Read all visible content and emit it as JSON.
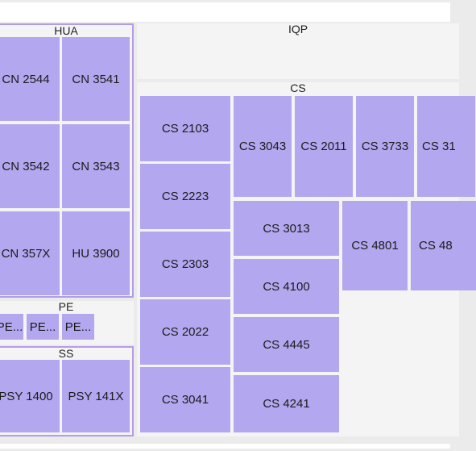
{
  "colors": {
    "leaf": "#b3a7ef",
    "group_bg": "#f4f4f4",
    "selected_border": "#b59ce9",
    "background": "#ebebeb"
  },
  "groups": {
    "hua": "HUA",
    "iqp": "IQP",
    "cs": "CS",
    "pe": "PE",
    "ss": "SS"
  },
  "leaves": {
    "hua": [
      "CN 2544",
      "CN 3541",
      "CN 3542",
      "CN 3543",
      "CN 357X",
      "HU 3900"
    ],
    "pe": [
      "PE...",
      "PE...",
      "PE..."
    ],
    "ss": [
      "PSY 1400",
      "PSY 141X"
    ],
    "cs": [
      "CS 2103",
      "CS 3043",
      "CS 2011",
      "CS 3733",
      "CS 31",
      "CS 2223",
      "CS 3013",
      "CS 4801",
      "CS 48",
      "CS 2303",
      "CS 4100",
      "CS 2022",
      "CS 4445",
      "CS 3041",
      "CS 4241"
    ]
  }
}
